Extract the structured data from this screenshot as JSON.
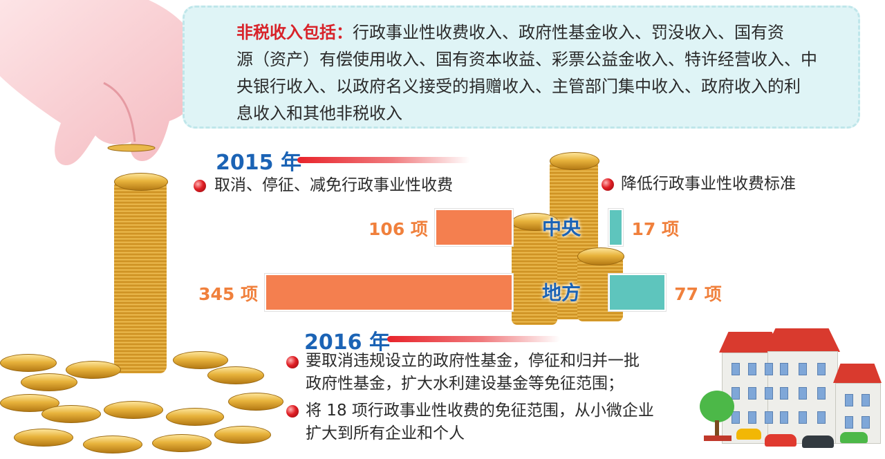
{
  "definition": {
    "label": "非税收入包括：",
    "lines": [
      "行政事业性收费收入、政府性基金收入、罚没收入、国有资",
      "源（资产）有偿使用收入、国有资本收益、彩票公益金收入、特许经营收入、中",
      "央银行收入、以政府名义接受的捐赠收入、主管部门集中收入、政府收入的利",
      "息收入和其他非税收入"
    ]
  },
  "year2015": {
    "title": "2015 年",
    "left_item": "取消、停征、减免行政事业性收费",
    "right_item": "降低行政事业性收费标准"
  },
  "chart_data": {
    "type": "bar",
    "categories": [
      "中央",
      "地方"
    ],
    "series": [
      {
        "name": "取消、停征、减免行政事业性收费",
        "values": [
          106,
          345
        ],
        "labels": [
          "106 项",
          "345 项"
        ],
        "color": "#f47f4f"
      },
      {
        "name": "降低行政事业性收费标准",
        "values": [
          17,
          77
        ],
        "labels": [
          "17 项",
          "77 项"
        ],
        "color": "#5ec5bd"
      }
    ],
    "title": "",
    "xlabel": "",
    "ylabel": ""
  },
  "year2016": {
    "title": "2016 年",
    "items": [
      {
        "line1": "要取消违规设立的政府性基金，停征和归并一批",
        "line2": "政府性基金，扩大水利建设基金等免征范围；"
      },
      {
        "line1": "将 18 项行政事业性收费的免征范围，从小微企业",
        "line2": "扩大到所有企业和个人"
      }
    ]
  }
}
